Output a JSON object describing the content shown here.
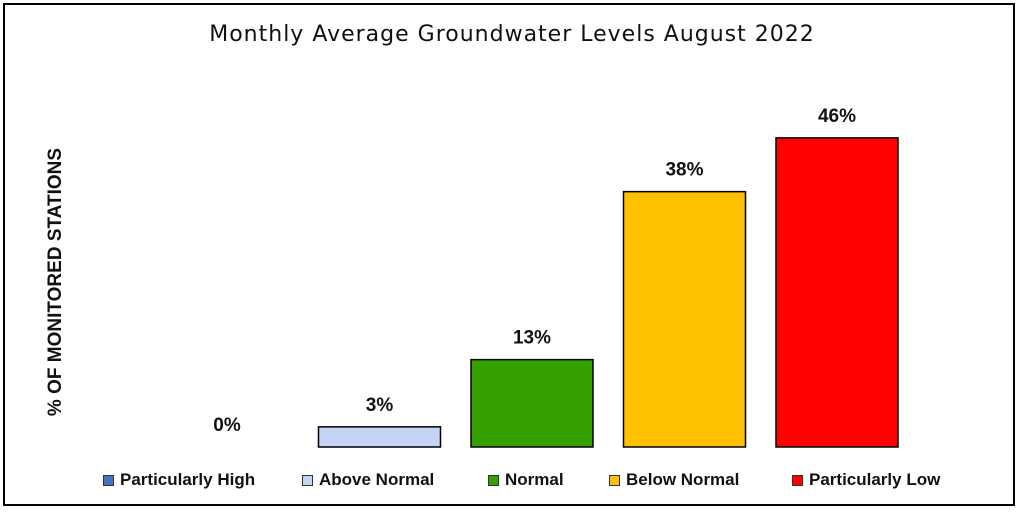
{
  "chart_data": {
    "type": "bar",
    "title": "Monthly Average Groundwater Levels August 2022",
    "ylabel": "% OF MONITORED STATIONS",
    "xlabel": "",
    "ylim": [
      0,
      50
    ],
    "grid": false,
    "legend_position": "bottom",
    "categories": [
      "Particularly High",
      "Above Normal",
      "Normal",
      "Below Normal",
      "Particularly Low"
    ],
    "values": [
      0,
      3,
      13,
      38,
      46
    ],
    "data_labels": [
      "0%",
      "3%",
      "13%",
      "38%",
      "46%"
    ],
    "colors": [
      "#4472C4",
      "#C5D3F5",
      "#33A000",
      "#FFC000",
      "#FF0000"
    ]
  }
}
